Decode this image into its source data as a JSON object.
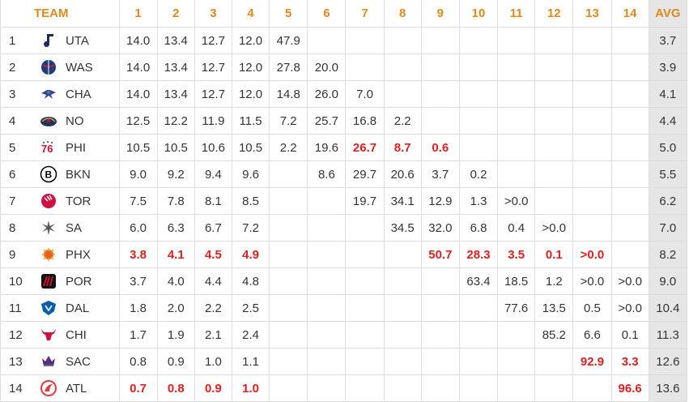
{
  "header": {
    "team": "TEAM",
    "picks": [
      "1",
      "2",
      "3",
      "4",
      "5",
      "6",
      "7",
      "8",
      "9",
      "10",
      "11",
      "12",
      "13",
      "14"
    ],
    "avg": "AVG"
  },
  "rows": [
    {
      "rank": "1",
      "team": "UTA",
      "logo": "jazz-note-icon",
      "color": "#1d2b5c",
      "cells": [
        "14.0",
        "13.4",
        "12.7",
        "12.0",
        "47.9",
        "",
        "",
        "",
        "",
        "",
        "",
        "",
        "",
        ""
      ],
      "highlight": [],
      "avg": "3.7"
    },
    {
      "rank": "2",
      "team": "WAS",
      "logo": "wizards-ball-icon",
      "color": "#1f3d7a",
      "cells": [
        "14.0",
        "13.4",
        "12.7",
        "12.0",
        "27.8",
        "20.0",
        "",
        "",
        "",
        "",
        "",
        "",
        "",
        ""
      ],
      "highlight": [],
      "avg": "3.9"
    },
    {
      "rank": "3",
      "team": "CHA",
      "logo": "hornet-icon",
      "color": "#4a3f8c",
      "cells": [
        "14.0",
        "13.4",
        "12.7",
        "12.0",
        "14.8",
        "26.0",
        "7.0",
        "",
        "",
        "",
        "",
        "",
        "",
        ""
      ],
      "highlight": [],
      "avg": "4.1"
    },
    {
      "rank": "4",
      "team": "NO",
      "logo": "pelican-icon",
      "color": "#233554",
      "cells": [
        "12.5",
        "12.2",
        "11.9",
        "11.5",
        "7.2",
        "25.7",
        "16.8",
        "2.2",
        "",
        "",
        "",
        "",
        "",
        ""
      ],
      "highlight": [],
      "avg": "4.4"
    },
    {
      "rank": "5",
      "team": "PHI",
      "logo": "sixers-76-icon",
      "color": "#c8102e",
      "cells": [
        "10.5",
        "10.5",
        "10.6",
        "10.5",
        "2.2",
        "19.6",
        "26.7",
        "8.7",
        "0.6",
        "",
        "",
        "",
        "",
        ""
      ],
      "highlight": [
        6,
        7,
        8
      ],
      "avg": "5.0"
    },
    {
      "rank": "6",
      "team": "BKN",
      "logo": "nets-b-icon",
      "color": "#000000",
      "cells": [
        "9.0",
        "9.2",
        "9.4",
        "9.6",
        "",
        "8.6",
        "29.7",
        "20.6",
        "3.7",
        "0.2",
        "",
        "",
        "",
        ""
      ],
      "highlight": [],
      "avg": "5.5"
    },
    {
      "rank": "7",
      "team": "TOR",
      "logo": "raptors-ball-icon",
      "color": "#ce1141",
      "cells": [
        "7.5",
        "7.8",
        "8.1",
        "8.5",
        "",
        "",
        "19.7",
        "34.1",
        "12.9",
        "1.3",
        ">0.0",
        "",
        "",
        ""
      ],
      "highlight": [],
      "avg": "6.2"
    },
    {
      "rank": "8",
      "team": "SA",
      "logo": "spurs-icon",
      "color": "#555555",
      "cells": [
        "6.0",
        "6.3",
        "6.7",
        "7.2",
        "",
        "",
        "",
        "34.5",
        "32.0",
        "6.8",
        "0.4",
        ">0.0",
        "",
        ""
      ],
      "highlight": [],
      "avg": "7.0"
    },
    {
      "rank": "9",
      "team": "PHX",
      "logo": "suns-icon",
      "color": "#e56020",
      "cells": [
        "3.8",
        "4.1",
        "4.5",
        "4.9",
        "",
        "",
        "",
        "",
        "50.7",
        "28.3",
        "3.5",
        "0.1",
        ">0.0",
        ""
      ],
      "highlight": [
        0,
        1,
        2,
        3,
        8,
        9,
        10,
        11,
        12
      ],
      "avg": "8.2"
    },
    {
      "rank": "10",
      "team": "POR",
      "logo": "blazers-icon",
      "color": "#c8102e",
      "cells": [
        "3.7",
        "4.0",
        "4.4",
        "4.8",
        "",
        "",
        "",
        "",
        "",
        "63.4",
        "18.5",
        "1.2",
        ">0.0",
        ">0.0"
      ],
      "highlight": [],
      "avg": "9.0"
    },
    {
      "rank": "11",
      "team": "DAL",
      "logo": "mavericks-icon",
      "color": "#0b5da7",
      "cells": [
        "1.8",
        "2.0",
        "2.2",
        "2.5",
        "",
        "",
        "",
        "",
        "",
        "",
        "77.6",
        "13.5",
        "0.5",
        ">0.0"
      ],
      "highlight": [],
      "avg": "10.4"
    },
    {
      "rank": "12",
      "team": "CHI",
      "logo": "bull-icon",
      "color": "#ce1141",
      "cells": [
        "1.7",
        "1.9",
        "2.1",
        "2.4",
        "",
        "",
        "",
        "",
        "",
        "",
        "",
        "85.2",
        "6.6",
        "0.1"
      ],
      "highlight": [],
      "avg": "11.3"
    },
    {
      "rank": "13",
      "team": "SAC",
      "logo": "kings-crown-icon",
      "color": "#5a2d81",
      "cells": [
        "0.8",
        "0.9",
        "1.0",
        "1.1",
        "",
        "",
        "",
        "",
        "",
        "",
        "",
        "",
        "92.9",
        "3.3"
      ],
      "highlight": [
        12,
        13
      ],
      "avg": "12.6"
    },
    {
      "rank": "14",
      "team": "ATL",
      "logo": "hawks-icon",
      "color": "#e03a3e",
      "cells": [
        "0.7",
        "0.8",
        "0.9",
        "1.0",
        "",
        "",
        "",
        "",
        "",
        "",
        "",
        "",
        "",
        "96.6"
      ],
      "highlight": [
        0,
        1,
        2,
        3,
        13
      ],
      "avg": "13.6"
    }
  ]
}
